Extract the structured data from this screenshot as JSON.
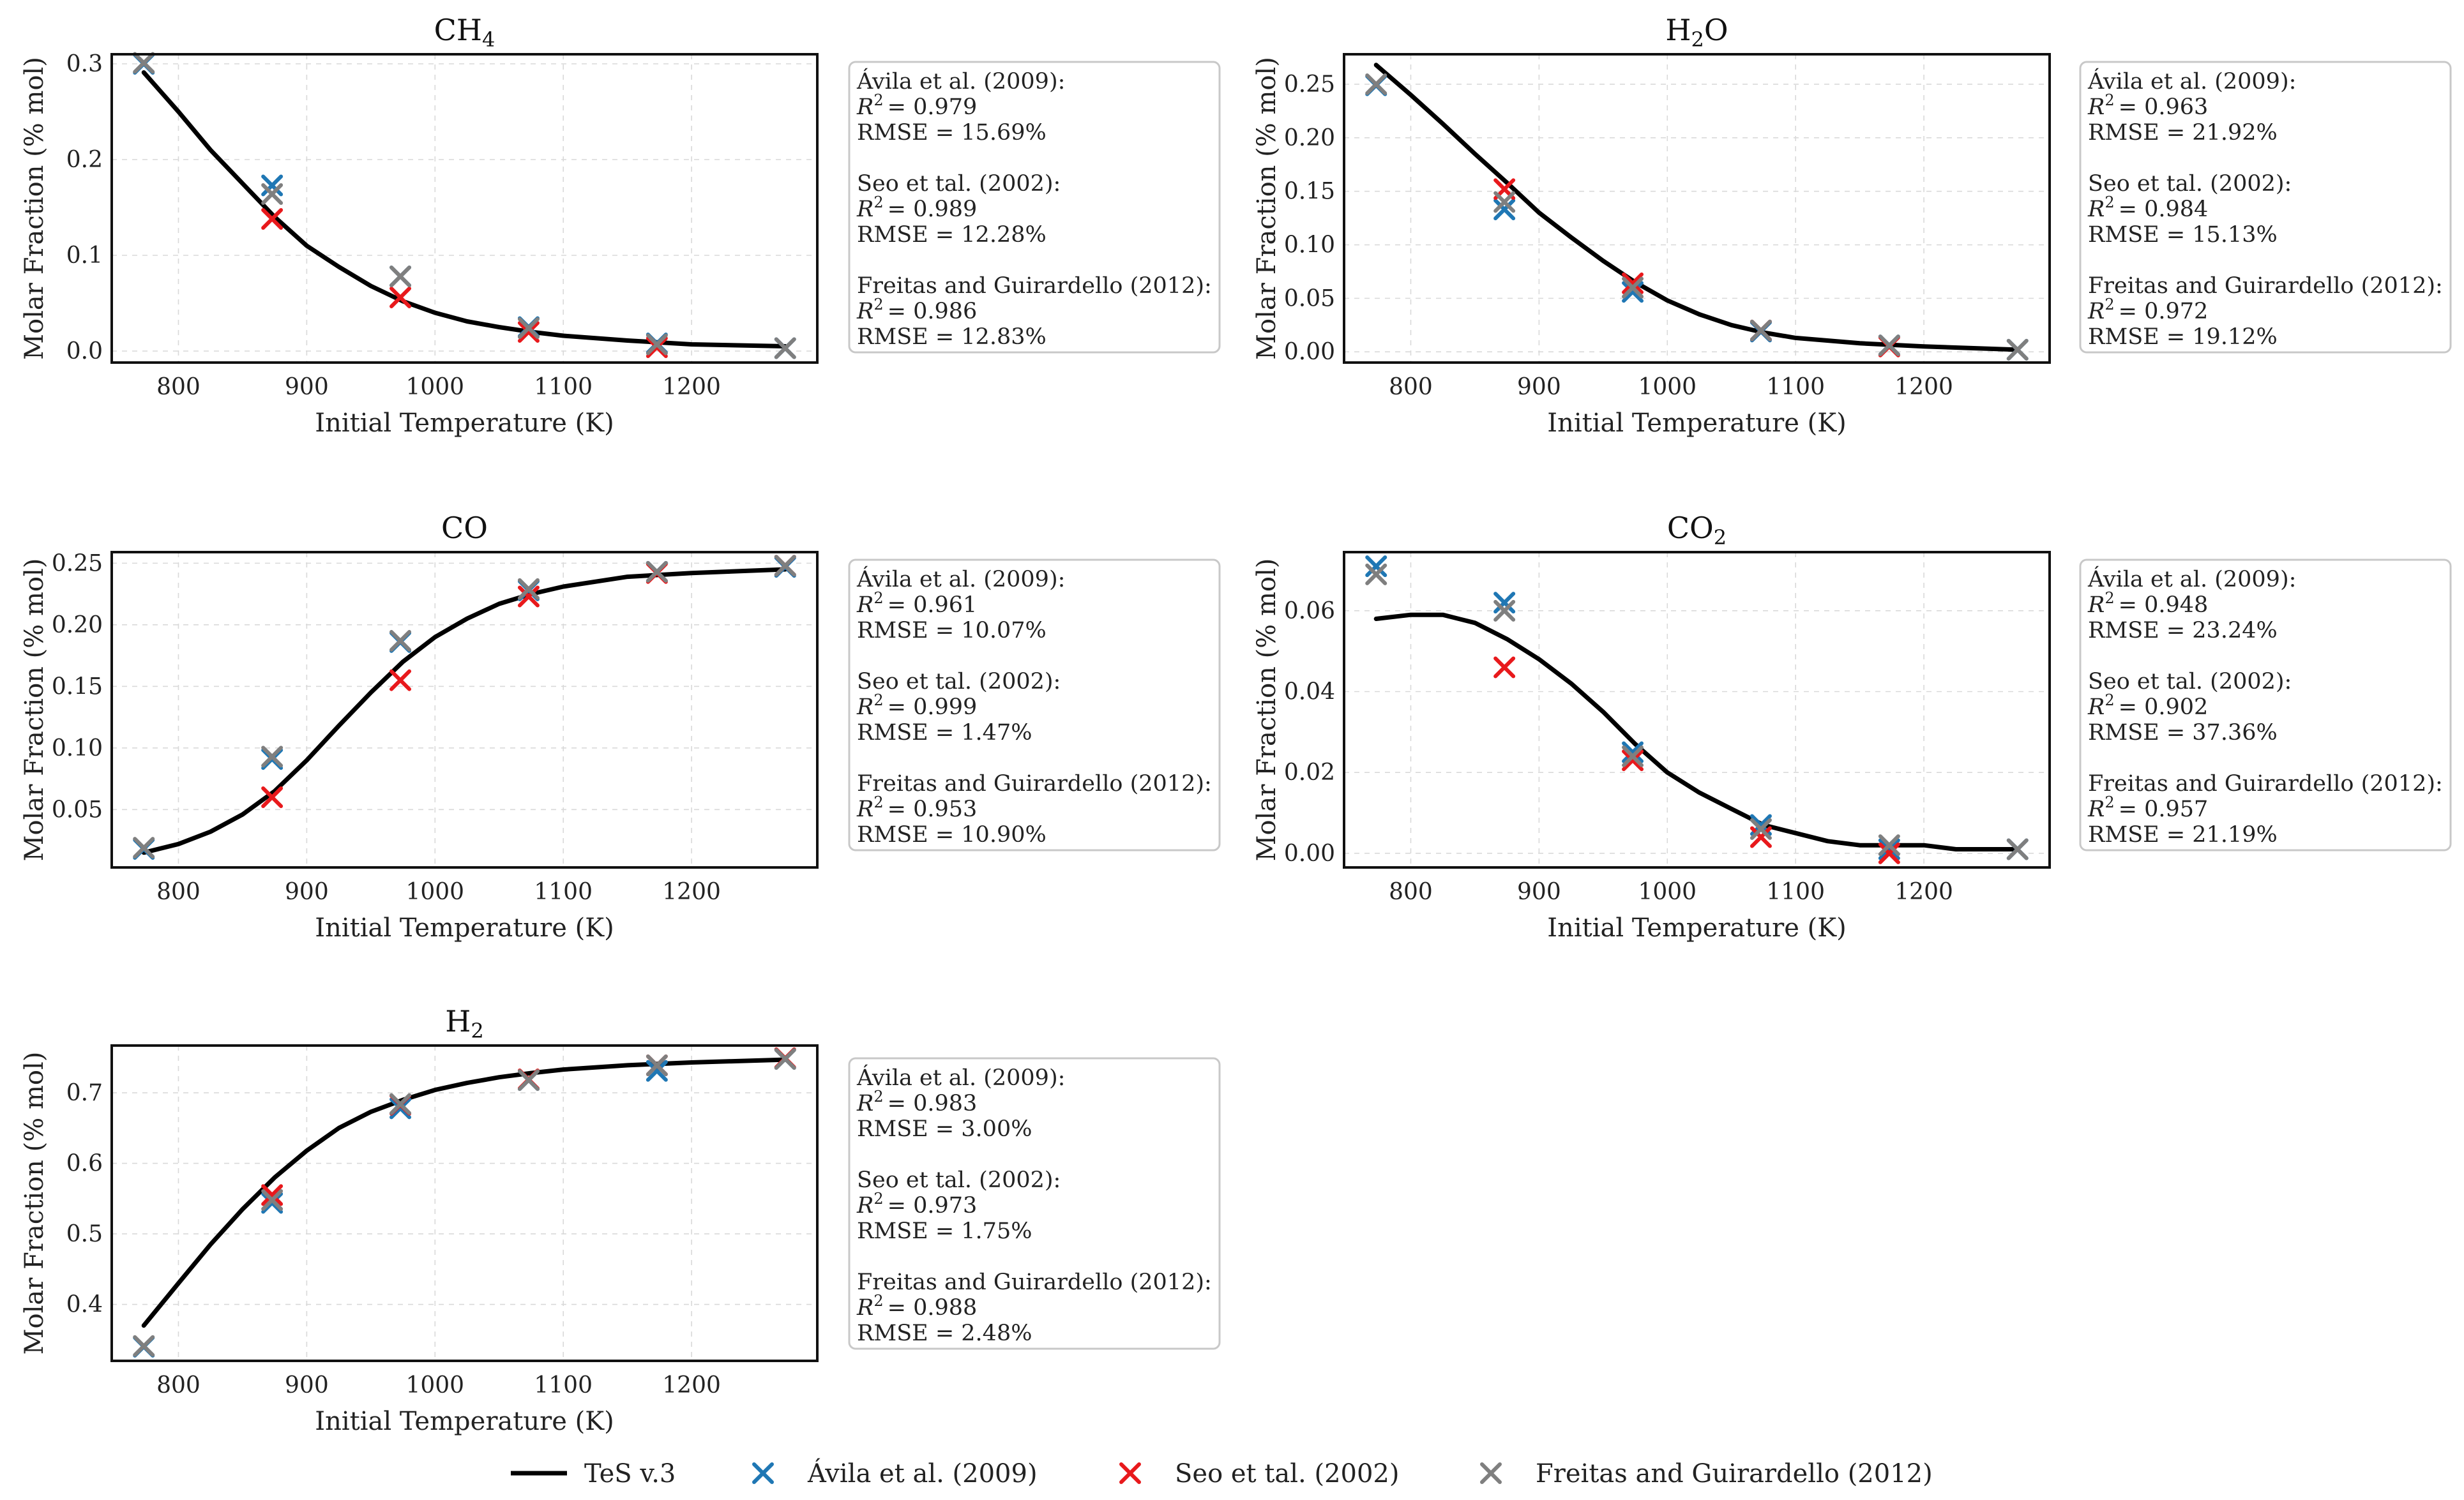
{
  "chart_data": [
    {
      "type": "line",
      "title": "CH4",
      "title_base": "CH",
      "title_sub": "4",
      "xlabel": "Initial Temperature (K)",
      "ylabel": "Molar Fraction (% mol)",
      "xlim": [
        748,
        1298
      ],
      "ylim": [
        -0.012,
        0.31
      ],
      "xticks": [
        800,
        900,
        1000,
        1100,
        1200
      ],
      "xtick_labels": [
        "800",
        "900",
        "1000",
        "1100",
        "1200"
      ],
      "yticks": [
        0.0,
        0.1,
        0.2,
        0.3
      ],
      "ytick_labels": [
        "0.0",
        "0.1",
        "0.2",
        "0.3"
      ],
      "model": {
        "name": "TeS v.3",
        "x": [
          773,
          800,
          825,
          850,
          875,
          900,
          925,
          950,
          975,
          1000,
          1025,
          1050,
          1075,
          1100,
          1150,
          1200,
          1273
        ],
        "y": [
          0.291,
          0.25,
          0.21,
          0.175,
          0.14,
          0.11,
          0.088,
          0.068,
          0.052,
          0.04,
          0.031,
          0.025,
          0.02,
          0.016,
          0.011,
          0.007,
          0.005
        ]
      },
      "series": [
        {
          "name": "Ávila et al. (2009)",
          "x": [
            773,
            873,
            973,
            1073,
            1173,
            1273
          ],
          "y": [
            0.3,
            0.173,
            0.078,
            0.025,
            0.008,
            0.003
          ]
        },
        {
          "name": "Seo et tal. (2002)",
          "x": [
            873,
            973,
            1073,
            1173
          ],
          "y": [
            0.138,
            0.056,
            0.02,
            0.004
          ]
        },
        {
          "name": "Freitas and Guirardello (2012)",
          "x": [
            773,
            873,
            973,
            1073,
            1173,
            1273
          ],
          "y": [
            0.301,
            0.164,
            0.078,
            0.024,
            0.007,
            0.003
          ]
        }
      ],
      "stats": [
        {
          "source": "Ávila et al. (2009):",
          "r2": "= 0.979",
          "rmse": "RMSE = 15.69%"
        },
        {
          "source": "Seo et tal. (2002):",
          "r2": "= 0.989",
          "rmse": "RMSE = 12.28%"
        },
        {
          "source": "Freitas and Guirardello (2012):",
          "r2": "= 0.986",
          "rmse": "RMSE = 12.83%"
        }
      ]
    },
    {
      "type": "line",
      "title": "H2O",
      "title_base": "H",
      "title_sub": "2",
      "title_tail": "O",
      "xlabel": "Initial Temperature (K)",
      "ylabel": "Molar Fraction (% mol)",
      "xlim": [
        748,
        1298
      ],
      "ylim": [
        -0.01,
        0.278
      ],
      "xticks": [
        800,
        900,
        1000,
        1100,
        1200
      ],
      "xtick_labels": [
        "800",
        "900",
        "1000",
        "1100",
        "1200"
      ],
      "yticks": [
        0.0,
        0.05,
        0.1,
        0.15,
        0.2,
        0.25
      ],
      "ytick_labels": [
        "0.00",
        "0.05",
        "0.10",
        "0.15",
        "0.20",
        "0.25"
      ],
      "model": {
        "name": "TeS v.3",
        "x": [
          773,
          800,
          825,
          850,
          875,
          900,
          925,
          950,
          975,
          1000,
          1025,
          1050,
          1075,
          1100,
          1150,
          1200,
          1273
        ],
        "y": [
          0.268,
          0.24,
          0.213,
          0.185,
          0.158,
          0.13,
          0.107,
          0.085,
          0.065,
          0.048,
          0.035,
          0.025,
          0.018,
          0.013,
          0.008,
          0.005,
          0.002
        ]
      },
      "series": [
        {
          "name": "Ávila et al. (2009)",
          "x": [
            773,
            873,
            973,
            1073,
            1173,
            1273
          ],
          "y": [
            0.249,
            0.133,
            0.056,
            0.019,
            0.006,
            0.002
          ]
        },
        {
          "name": "Seo et tal. (2002)",
          "x": [
            873,
            973,
            1073,
            1173
          ],
          "y": [
            0.152,
            0.064,
            0.02,
            0.005
          ]
        },
        {
          "name": "Freitas and Guirardello (2012)",
          "x": [
            773,
            873,
            973,
            1073,
            1173,
            1273
          ],
          "y": [
            0.25,
            0.14,
            0.06,
            0.02,
            0.006,
            0.002
          ]
        }
      ],
      "stats": [
        {
          "source": "Ávila et al. (2009):",
          "r2": "= 0.963",
          "rmse": "RMSE = 21.92%"
        },
        {
          "source": "Seo et tal. (2002):",
          "r2": "= 0.984",
          "rmse": "RMSE = 15.13%"
        },
        {
          "source": "Freitas and Guirardello (2012):",
          "r2": "= 0.972",
          "rmse": "RMSE = 19.12%"
        }
      ]
    },
    {
      "type": "line",
      "title": "CO",
      "title_base": "CO",
      "xlabel": "Initial Temperature (K)",
      "ylabel": "Molar Fraction (% mol)",
      "xlim": [
        748,
        1298
      ],
      "ylim": [
        0.003,
        0.259
      ],
      "xticks": [
        800,
        900,
        1000,
        1100,
        1200
      ],
      "xtick_labels": [
        "800",
        "900",
        "1000",
        "1100",
        "1200"
      ],
      "yticks": [
        0.05,
        0.1,
        0.15,
        0.2,
        0.25
      ],
      "ytick_labels": [
        "0.05",
        "0.10",
        "0.15",
        "0.20",
        "0.25"
      ],
      "model": {
        "name": "TeS v.3",
        "x": [
          773,
          800,
          825,
          850,
          875,
          900,
          925,
          950,
          975,
          1000,
          1025,
          1050,
          1075,
          1100,
          1150,
          1200,
          1273
        ],
        "y": [
          0.015,
          0.022,
          0.032,
          0.046,
          0.065,
          0.09,
          0.118,
          0.145,
          0.17,
          0.19,
          0.205,
          0.217,
          0.225,
          0.231,
          0.239,
          0.242,
          0.245
        ]
      },
      "series": [
        {
          "name": "Ávila et al. (2009)",
          "x": [
            773,
            873,
            973,
            1073,
            1173,
            1273
          ],
          "y": [
            0.018,
            0.091,
            0.186,
            0.228,
            0.243,
            0.247
          ]
        },
        {
          "name": "Seo et tal. (2002)",
          "x": [
            873,
            973,
            1073,
            1173,
            1273
          ],
          "y": [
            0.06,
            0.155,
            0.223,
            0.242,
            0.248
          ]
        },
        {
          "name": "Freitas and Guirardello (2012)",
          "x": [
            773,
            873,
            973,
            1073,
            1173,
            1273
          ],
          "y": [
            0.019,
            0.093,
            0.187,
            0.229,
            0.243,
            0.248
          ]
        }
      ],
      "stats": [
        {
          "source": "Ávila et al. (2009):",
          "r2": "= 0.961",
          "rmse": "RMSE = 10.07%"
        },
        {
          "source": "Seo et tal. (2002):",
          "r2": "= 0.999",
          "rmse": "RMSE = 1.47%"
        },
        {
          "source": "Freitas and Guirardello (2012):",
          "r2": "= 0.953",
          "rmse": "RMSE = 10.90%"
        }
      ]
    },
    {
      "type": "line",
      "title": "CO2",
      "title_base": "CO",
      "title_sub": "2",
      "xlabel": "Initial Temperature (K)",
      "ylabel": "Molar Fraction (% mol)",
      "xlim": [
        748,
        1298
      ],
      "ylim": [
        -0.0035,
        0.0745
      ],
      "xticks": [
        800,
        900,
        1000,
        1100,
        1200
      ],
      "xtick_labels": [
        "800",
        "900",
        "1000",
        "1100",
        "1200"
      ],
      "yticks": [
        0.0,
        0.02,
        0.04,
        0.06
      ],
      "ytick_labels": [
        "0.00",
        "0.02",
        "0.04",
        "0.06"
      ],
      "model": {
        "name": "TeS v.3",
        "x": [
          773,
          800,
          825,
          850,
          875,
          900,
          925,
          950,
          975,
          1000,
          1025,
          1050,
          1075,
          1100,
          1125,
          1150,
          1175,
          1200,
          1225,
          1273
        ],
        "y": [
          0.058,
          0.059,
          0.059,
          0.057,
          0.053,
          0.048,
          0.042,
          0.035,
          0.027,
          0.02,
          0.015,
          0.011,
          0.007,
          0.005,
          0.003,
          0.002,
          0.002,
          0.002,
          0.001,
          0.001
        ]
      },
      "series": [
        {
          "name": "Ávila et al. (2009)",
          "x": [
            773,
            873,
            973,
            1073,
            1173,
            1273
          ],
          "y": [
            0.071,
            0.062,
            0.025,
            0.007,
            0.001,
            0.001
          ]
        },
        {
          "name": "Seo et tal. (2002)",
          "x": [
            873,
            973,
            1073,
            1173
          ],
          "y": [
            0.046,
            0.023,
            0.004,
            0.0
          ]
        },
        {
          "name": "Freitas and Guirardello (2012)",
          "x": [
            773,
            873,
            973,
            1073,
            1173,
            1273
          ],
          "y": [
            0.069,
            0.06,
            0.024,
            0.006,
            0.002,
            0.001
          ]
        }
      ],
      "stats": [
        {
          "source": "Ávila et al. (2009):",
          "r2": "= 0.948",
          "rmse": "RMSE = 23.24%"
        },
        {
          "source": "Seo et tal. (2002):",
          "r2": "= 0.902",
          "rmse": "RMSE = 37.36%"
        },
        {
          "source": "Freitas and Guirardello (2012):",
          "r2": "= 0.957",
          "rmse": "RMSE = 21.19%"
        }
      ]
    },
    {
      "type": "line",
      "title": "H2",
      "title_base": "H",
      "title_sub": "2",
      "xlabel": "Initial Temperature (K)",
      "ylabel": "Molar Fraction (% mol)",
      "xlim": [
        748,
        1298
      ],
      "ylim": [
        0.32,
        0.767
      ],
      "xticks": [
        800,
        900,
        1000,
        1100,
        1200
      ],
      "xtick_labels": [
        "800",
        "900",
        "1000",
        "1100",
        "1200"
      ],
      "yticks": [
        0.4,
        0.5,
        0.6,
        0.7
      ],
      "ytick_labels": [
        "0.4",
        "0.5",
        "0.6",
        "0.7"
      ],
      "model": {
        "name": "TeS v.3",
        "x": [
          773,
          800,
          825,
          850,
          875,
          900,
          925,
          950,
          975,
          1000,
          1025,
          1050,
          1075,
          1100,
          1150,
          1200,
          1273
        ],
        "y": [
          0.37,
          0.43,
          0.485,
          0.535,
          0.58,
          0.618,
          0.65,
          0.673,
          0.69,
          0.704,
          0.714,
          0.722,
          0.728,
          0.733,
          0.739,
          0.743,
          0.747
        ]
      },
      "series": [
        {
          "name": "Ávila et al. (2009)",
          "x": [
            773,
            873,
            973,
            1073,
            1173,
            1273
          ],
          "y": [
            0.34,
            0.544,
            0.678,
            0.718,
            0.731,
            0.748
          ]
        },
        {
          "name": "Seo et tal. (2002)",
          "x": [
            873,
            973,
            1073,
            1173,
            1273
          ],
          "y": [
            0.555,
            0.683,
            0.719,
            0.739,
            0.749
          ]
        },
        {
          "name": "Freitas and Guirardello (2012)",
          "x": [
            773,
            873,
            973,
            1073,
            1173,
            1273
          ],
          "y": [
            0.341,
            0.548,
            0.684,
            0.718,
            0.739,
            0.748
          ]
        }
      ],
      "stats": [
        {
          "source": "Ávila et al. (2009):",
          "r2": "= 0.983",
          "rmse": "RMSE = 3.00%"
        },
        {
          "source": "Seo et tal. (2002):",
          "r2": "= 0.973",
          "rmse": "RMSE = 1.75%"
        },
        {
          "source": "Freitas and Guirardello (2012):",
          "r2": "= 0.988",
          "rmse": "RMSE = 2.48%"
        }
      ]
    }
  ],
  "r2_label": "R",
  "r2_sup": "2",
  "colors": {
    "model": "#000000",
    "Ávila et al. (2009)": "#1f77b4",
    "Seo et tal. (2002)": "#e8191c",
    "Freitas and Guirardello (2012)": "#7f7f7f"
  },
  "legend": [
    {
      "label": "TeS v.3",
      "kind": "line",
      "color": "#000000"
    },
    {
      "label": "Ávila et al. (2009)",
      "kind": "marker",
      "color": "#1f77b4"
    },
    {
      "label": "Seo et tal. (2002)",
      "kind": "marker",
      "color": "#e8191c"
    },
    {
      "label": "Freitas and Guirardello (2012)",
      "kind": "marker",
      "color": "#7f7f7f"
    }
  ]
}
